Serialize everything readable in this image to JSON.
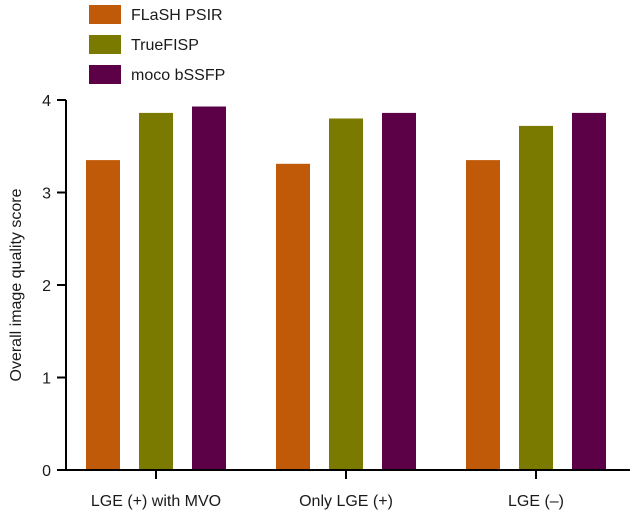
{
  "chart_data": {
    "type": "bar",
    "title": "",
    "xlabel": "",
    "ylabel": "Overall image quality score",
    "ylim": [
      0,
      4
    ],
    "yticks": [
      "0",
      "1",
      "2",
      "3",
      "4"
    ],
    "categories": [
      "LGE (+) with MVO",
      "Only LGE (+)",
      "LGE (–)"
    ],
    "series": [
      {
        "name": "FLaSH PSIR",
        "color": "#c05a08",
        "values": [
          3.35,
          3.31,
          3.35
        ]
      },
      {
        "name": "TrueFISP",
        "color": "#7a7a00",
        "values": [
          3.86,
          3.8,
          3.72
        ]
      },
      {
        "name": "moco bSSFP",
        "color": "#5c0048",
        "values": [
          3.93,
          3.86,
          3.86
        ]
      }
    ],
    "legend_position": "top-left",
    "grid": false
  }
}
